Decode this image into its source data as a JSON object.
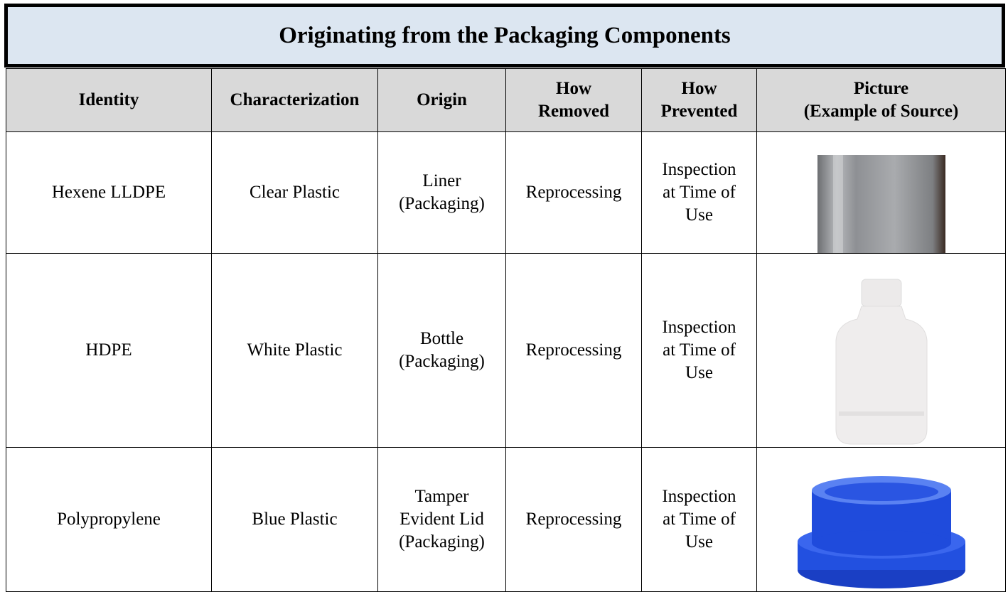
{
  "header": {
    "title": "Originating from the Packaging Components"
  },
  "table": {
    "header": [
      "Identity",
      "Characterization",
      "Origin",
      "How\nRemoved",
      "How\nPrevented",
      "Picture\n(Example of Source)"
    ],
    "rows": [
      [
        "Hexene LLDPE",
        "Clear Plastic",
        "Liner\n(Packaging)",
        "Reprocessing",
        "Inspection\nat Time of\nUse"
      ],
      [
        "HDPE",
        "White Plastic",
        "Bottle\n(Packaging)",
        "Reprocessing",
        "Inspection\nat Time of\nUse"
      ],
      [
        "Polypropylene",
        "Blue Plastic",
        "Tamper\nEvident Lid\n(Packaging)",
        "Reprocessing",
        "Inspection\nat Time of\nUse"
      ]
    ]
  }
}
